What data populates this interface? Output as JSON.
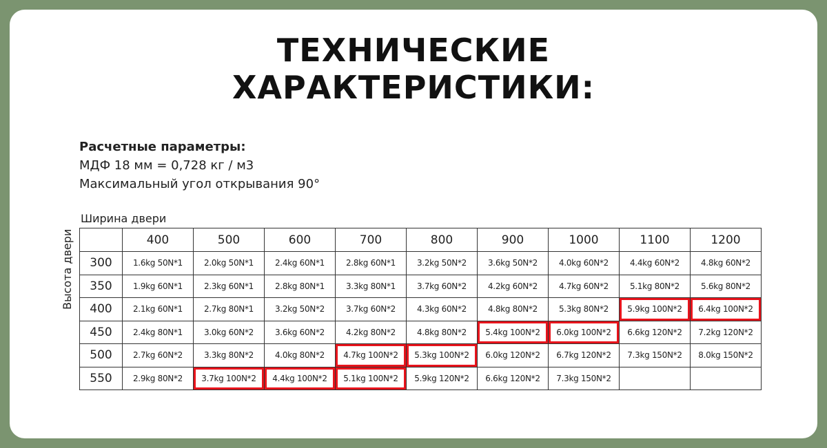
{
  "title": {
    "line1": "ТЕХНИЧЕСКИЕ",
    "line2": "ХАРАКТЕРИСТИКИ:"
  },
  "params": {
    "heading": "Расчетные параметры:",
    "line1": "МДФ 18 мм = 0,728 кг / м3",
    "line2": "Максимальный угол открывания 90°"
  },
  "table": {
    "width_label": "Ширина двери",
    "height_label": "Высота двери",
    "columns": [
      "400",
      "500",
      "600",
      "700",
      "800",
      "900",
      "1000",
      "1100",
      "1200"
    ],
    "rows": [
      {
        "height": "300",
        "cells": [
          "1.6kg 50N*1",
          "2.0kg 50N*1",
          "2.4kg 60N*1",
          "2.8kg 60N*1",
          "3.2kg 50N*2",
          "3.6kg 50N*2",
          "4.0kg 60N*2",
          "4.4kg 60N*2",
          "4.8kg 60N*2"
        ]
      },
      {
        "height": "350",
        "cells": [
          "1.9kg 60N*1",
          "2.3kg 60N*1",
          "2.8kg 80N*1",
          "3.3kg 80N*1",
          "3.7kg 60N*2",
          "4.2kg 60N*2",
          "4.7kg 60N*2",
          "5.1kg 80N*2",
          "5.6kg 80N*2"
        ]
      },
      {
        "height": "400",
        "cells": [
          "2.1kg 60N*1",
          "2.7kg 80N*1",
          "3.2kg 50N*2",
          "3.7kg 60N*2",
          "4.3kg 60N*2",
          "4.8kg 80N*2",
          "5.3kg 80N*2",
          "5.9kg 100N*2",
          "6.4kg 100N*2"
        ],
        "highlighted": [
          7,
          8
        ]
      },
      {
        "height": "450",
        "cells": [
          "2.4kg 80N*1",
          "3.0kg 60N*2",
          "3.6kg 60N*2",
          "4.2kg 80N*2",
          "4.8kg 80N*2",
          "5.4kg 100N*2",
          "6.0kg 100N*2",
          "6.6kg 120N*2",
          "7.2kg 120N*2"
        ],
        "highlighted": [
          5,
          6
        ]
      },
      {
        "height": "500",
        "cells": [
          "2.7kg 60N*2",
          "3.3kg 80N*2",
          "4.0kg 80N*2",
          "4.7kg 100N*2",
          "5.3kg 100N*2",
          "6.0kg 120N*2",
          "6.7kg 120N*2",
          "7.3kg 150N*2",
          "8.0kg 150N*2"
        ],
        "highlighted": [
          3,
          4
        ]
      },
      {
        "height": "550",
        "cells": [
          "2.9kg 80N*2",
          "3.7kg 100N*2",
          "4.4kg 100N*2",
          "5.1kg 100N*2",
          "5.9kg 120N*2",
          "6.6kg 120N*2",
          "7.3kg 150N*2",
          "",
          ""
        ],
        "highlighted": [
          1,
          2,
          3
        ]
      }
    ],
    "highlight_color": "#e8141c"
  }
}
